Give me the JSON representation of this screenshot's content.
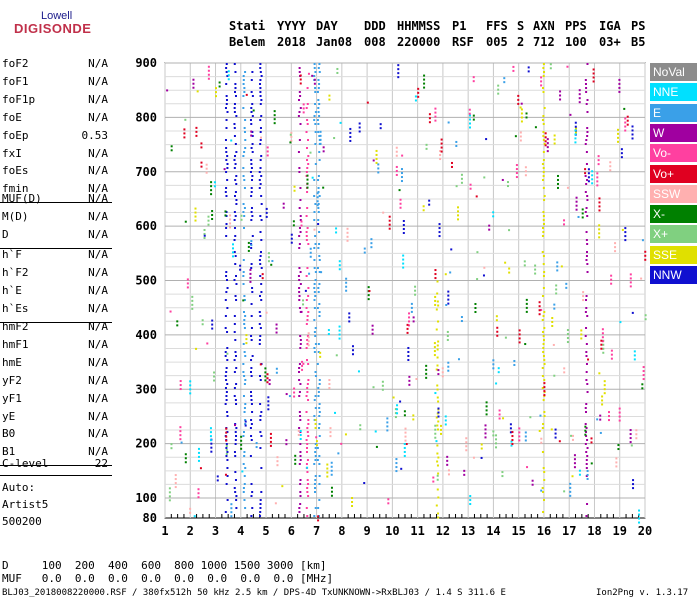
{
  "logo": {
    "top": "Lowell",
    "bottom": "DIGISONDE"
  },
  "header": {
    "labels": [
      "Stati",
      "YYYY",
      "DAY",
      "DDD",
      "HHMMSS",
      "P1",
      "FFS",
      "S",
      "AXN",
      "PPS",
      "IGA",
      "PS"
    ],
    "values": [
      "Belem",
      "2018",
      "Jan08",
      "008",
      "220000",
      "RSF",
      "005",
      "2",
      "712",
      "100",
      "03+",
      "B5"
    ]
  },
  "params_group1": [
    {
      "label": "foF2",
      "value": "N/A"
    },
    {
      "label": "foF1",
      "value": "N/A"
    },
    {
      "label": "foF1p",
      "value": "N/A"
    },
    {
      "label": "foE",
      "value": "N/A"
    },
    {
      "label": "foEp",
      "value": "0.53"
    },
    {
      "label": "fxI",
      "value": "N/A"
    },
    {
      "label": "foEs",
      "value": "N/A"
    },
    {
      "label": "fmin",
      "value": "N/A"
    }
  ],
  "params_group2": [
    {
      "label": "MUF(D)",
      "value": "N/A"
    },
    {
      "label": "M(D)",
      "value": "N/A"
    },
    {
      "label": "D",
      "value": "N/A"
    }
  ],
  "params_group3": [
    {
      "label": "h`F",
      "value": "N/A"
    },
    {
      "label": "h`F2",
      "value": "N/A"
    },
    {
      "label": "h`E",
      "value": "N/A"
    },
    {
      "label": "h`Es",
      "value": "N/A"
    }
  ],
  "params_group4": [
    {
      "label": "hmF2",
      "value": "N/A"
    },
    {
      "label": "hmF1",
      "value": "N/A"
    },
    {
      "label": "hmE",
      "value": "N/A"
    },
    {
      "label": "yF2",
      "value": "N/A"
    },
    {
      "label": "yF1",
      "value": "N/A"
    },
    {
      "label": "yE",
      "value": "N/A"
    },
    {
      "label": "B0",
      "value": "N/A"
    },
    {
      "label": "B1",
      "value": "N/A"
    }
  ],
  "c_level": {
    "label": "C-level",
    "value": "22"
  },
  "auto_lines": [
    "Auto:",
    "Artist5",
    "500200"
  ],
  "legend": [
    {
      "label": "NoVal",
      "color": "#8c8c8c"
    },
    {
      "label": "NNE",
      "color": "#00e0ff"
    },
    {
      "label": "E",
      "color": "#3aa0e8"
    },
    {
      "label": "W",
      "color": "#a000a0"
    },
    {
      "label": "Vo-",
      "color": "#ff40a0"
    },
    {
      "label": "Vo+",
      "color": "#e00020"
    },
    {
      "label": "SSW",
      "color": "#ffb0b0"
    },
    {
      "label": "X-",
      "color": "#008000"
    },
    {
      "label": "X+",
      "color": "#80d080"
    },
    {
      "label": "SSE",
      "color": "#e0e000"
    },
    {
      "label": "NNW",
      "color": "#1010d0"
    }
  ],
  "footer": {
    "d_line": "D     100  200  400  600  800 1000 1500 3000 [km]",
    "muf_line": "MUF   0.0  0.0  0.0  0.0  0.0  0.0  0.0  0.0 [MHz]",
    "info_line": "BLJ03_2018008220000.RSF / 380fx512h 50 kHz 2.5 km / DPS-4D TxUNKNOWN->RxBLJ03 / 1.4 S 311.6 E",
    "version": "Ion2Png v. 1.3.17"
  },
  "chart_data": {
    "type": "scatter",
    "xlabel": "",
    "ylabel": "",
    "x_ticks": [
      "1",
      "2",
      "3",
      "4",
      "5",
      "6",
      "7",
      "8",
      "9",
      "10",
      "11",
      "12",
      "13",
      "14",
      "15",
      "16",
      "17",
      "18",
      "19",
      "20"
    ],
    "y_ticks": [
      "80",
      "100",
      "200",
      "300",
      "400",
      "500",
      "600",
      "700",
      "800",
      "900"
    ],
    "xlim": [
      1,
      20
    ],
    "ylim": [
      80,
      900
    ],
    "grid": true,
    "traces": [
      {
        "series": "NNW",
        "x": 3.4,
        "y0": 80,
        "y1": 900
      },
      {
        "series": "NNW",
        "x": 4.4,
        "y0": 80,
        "y1": 900
      },
      {
        "series": "NNW",
        "x": 4.75,
        "y0": 80,
        "y1": 900
      },
      {
        "series": "E",
        "x": 6.9,
        "y0": 80,
        "y1": 900
      },
      {
        "series": "E",
        "x": 7.05,
        "y0": 80,
        "y1": 900
      },
      {
        "series": "W",
        "x": 6.3,
        "y0": 80,
        "y1": 900
      },
      {
        "series": "Vo-",
        "x": 6.6,
        "y0": 80,
        "y1": 900
      },
      {
        "series": "SSE",
        "x": 15.95,
        "y0": 80,
        "y1": 900
      },
      {
        "series": "SSE",
        "x": 11.75,
        "y0": 80,
        "y1": 500
      },
      {
        "series": "W",
        "x": 17.65,
        "y0": 80,
        "y1": 900
      },
      {
        "series": "NNW",
        "x": 3.75,
        "y0": 80,
        "y1": 900
      },
      {
        "series": "E",
        "x": 4.1,
        "y0": 80,
        "y1": 900
      }
    ]
  }
}
